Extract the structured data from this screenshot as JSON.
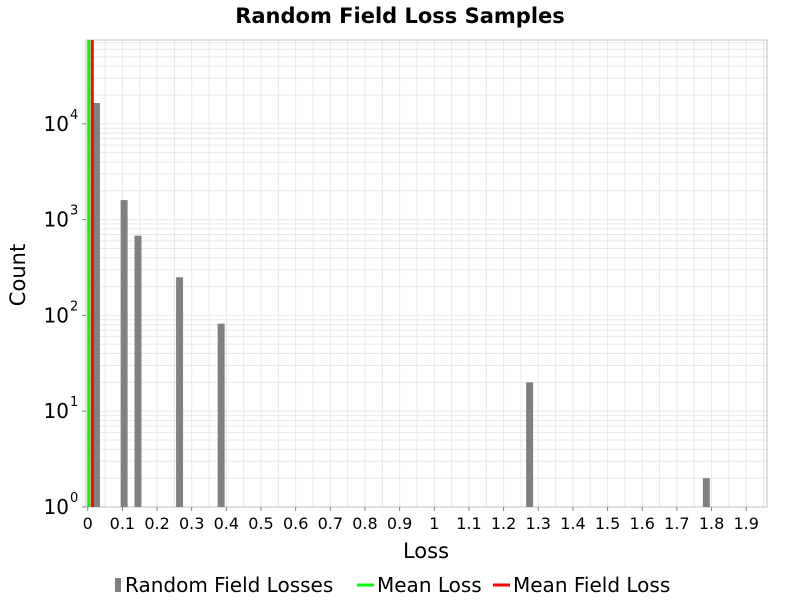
{
  "chart_data": {
    "type": "bar",
    "title": "Random Field Loss Samples",
    "xlabel": "Loss",
    "ylabel": "Count",
    "y_scale": "log",
    "ylim": [
      1,
      75000
    ],
    "xlim": [
      -0.005,
      1.96
    ],
    "x_ticks": [
      "0",
      "0.1",
      "0.2",
      "0.3",
      "0.4",
      "0.5",
      "0.6",
      "0.7",
      "0.8",
      "0.9",
      "1",
      "1.1",
      "1.2",
      "1.3",
      "1.4",
      "1.5",
      "1.6",
      "1.7",
      "1.8",
      "1.9"
    ],
    "y_ticks": [
      {
        "base": "10",
        "exp": "0"
      },
      {
        "base": "10",
        "exp": "1"
      },
      {
        "base": "10",
        "exp": "2"
      },
      {
        "base": "10",
        "exp": "3"
      },
      {
        "base": "10",
        "exp": "4"
      }
    ],
    "grid": true,
    "legend_position": "bottom",
    "series": [
      {
        "name": "Random Field Losses",
        "color": "#808080",
        "x": [
          0.025,
          0.105,
          0.145,
          0.265,
          0.385,
          1.275,
          1.785
        ],
        "values": [
          16500,
          1600,
          680,
          250,
          82,
          20,
          2
        ]
      },
      {
        "name": "Mean Loss",
        "color": "#00ff00",
        "x_value": 0.003
      },
      {
        "name": "Mean Field Loss",
        "color": "#ff0000",
        "x_value": 0.013
      }
    ],
    "colors": {
      "bar": "#808080",
      "mean_loss": "#00ff00",
      "mean_field_loss": "#ff0000",
      "grid": "#e8e8e8",
      "plot_border": "#c0c0c0"
    }
  }
}
